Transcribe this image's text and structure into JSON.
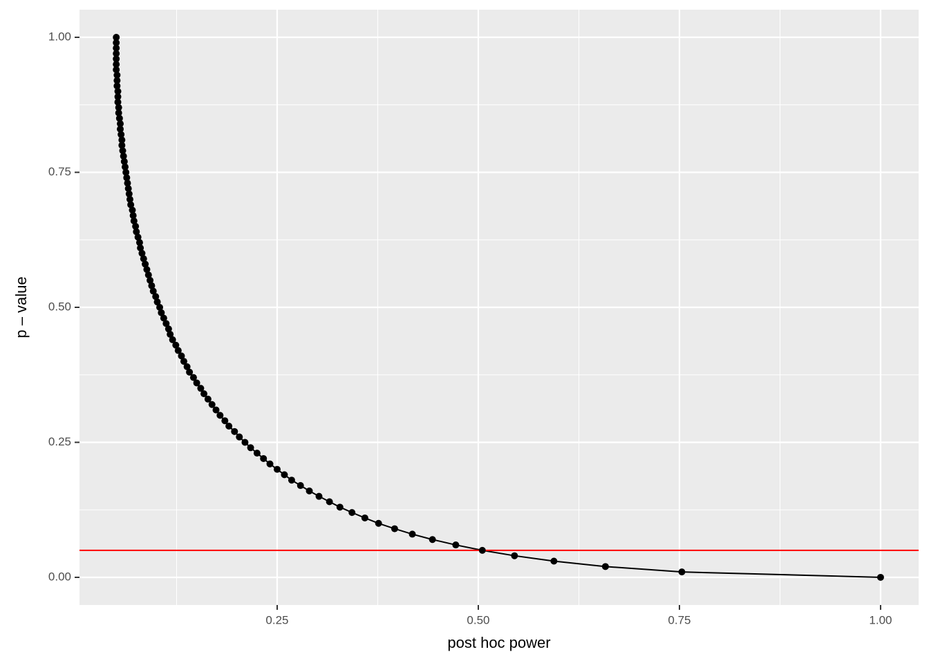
{
  "chart_data": {
    "type": "line",
    "xlabel": "post hoc power",
    "ylabel": "p – value",
    "x": [
      1.0,
      0.753,
      0.658,
      0.594,
      0.545,
      0.505,
      0.472,
      0.443,
      0.418,
      0.396,
      0.376,
      0.359,
      0.343,
      0.328,
      0.315,
      0.302,
      0.29,
      0.279,
      0.268,
      0.259,
      0.25,
      0.241,
      0.233,
      0.225,
      0.217,
      0.21,
      0.203,
      0.197,
      0.19,
      0.185,
      0.179,
      0.174,
      0.169,
      0.164,
      0.159,
      0.155,
      0.15,
      0.146,
      0.141,
      0.138,
      0.134,
      0.131,
      0.127,
      0.124,
      0.12,
      0.117,
      0.115,
      0.112,
      0.109,
      0.106,
      0.104,
      0.101,
      0.099,
      0.096,
      0.094,
      0.092,
      0.09,
      0.088,
      0.086,
      0.084,
      0.082,
      0.08,
      0.079,
      0.077,
      0.075,
      0.074,
      0.072,
      0.071,
      0.07,
      0.068,
      0.067,
      0.066,
      0.065,
      0.064,
      0.063,
      0.062,
      0.061,
      0.06,
      0.059,
      0.058,
      0.057,
      0.057,
      0.056,
      0.055,
      0.055,
      0.054,
      0.053,
      0.053,
      0.052,
      0.052,
      0.052,
      0.051,
      0.051,
      0.051,
      0.05,
      0.05,
      0.05,
      0.05,
      0.05,
      0.05,
      0.05
    ],
    "values": [
      0,
      0.01,
      0.02,
      0.03,
      0.04,
      0.05,
      0.06,
      0.07,
      0.08,
      0.09,
      0.1,
      0.11,
      0.12,
      0.13,
      0.14,
      0.15,
      0.16,
      0.17,
      0.18,
      0.19,
      0.2,
      0.21,
      0.22,
      0.23,
      0.24,
      0.25,
      0.26,
      0.27,
      0.28,
      0.29,
      0.3,
      0.31,
      0.32,
      0.33,
      0.34,
      0.35,
      0.36,
      0.37,
      0.38,
      0.39,
      0.4,
      0.41,
      0.42,
      0.43,
      0.44,
      0.45,
      0.46,
      0.47,
      0.48,
      0.49,
      0.5,
      0.51,
      0.52,
      0.53,
      0.54,
      0.55,
      0.56,
      0.57,
      0.58,
      0.59,
      0.6,
      0.61,
      0.62,
      0.63,
      0.64,
      0.65,
      0.66,
      0.67,
      0.68,
      0.69,
      0.7,
      0.71,
      0.72,
      0.73,
      0.74,
      0.75,
      0.76,
      0.77,
      0.78,
      0.79,
      0.8,
      0.81,
      0.82,
      0.83,
      0.84,
      0.85,
      0.86,
      0.87,
      0.88,
      0.89,
      0.9,
      0.91,
      0.92,
      0.93,
      0.94,
      0.95,
      0.96,
      0.97,
      0.98,
      0.99,
      1
    ],
    "color": "#000000",
    "hline": {
      "value": 0.05,
      "color": "#ff0000"
    },
    "xlim": [
      0.0043,
      1.0473
    ],
    "ylim": [
      -0.0512,
      1.0512
    ],
    "xticks": [
      0.25,
      {
        "value": 0.5,
        "label": "0.50"
      },
      0.75,
      {
        "value": 1,
        "label": "1.00"
      }
    ],
    "yticks": [
      {
        "value": 0,
        "label": "0.00"
      },
      0.25,
      {
        "value": 0.5,
        "label": "0.50"
      },
      0.75,
      {
        "value": 1,
        "label": "1.00"
      }
    ],
    "xminor": [
      0.125,
      0.375,
      0.625,
      0.875
    ],
    "yminor": [
      0.125,
      0.375,
      0.625,
      0.875
    ],
    "grid": true
  }
}
